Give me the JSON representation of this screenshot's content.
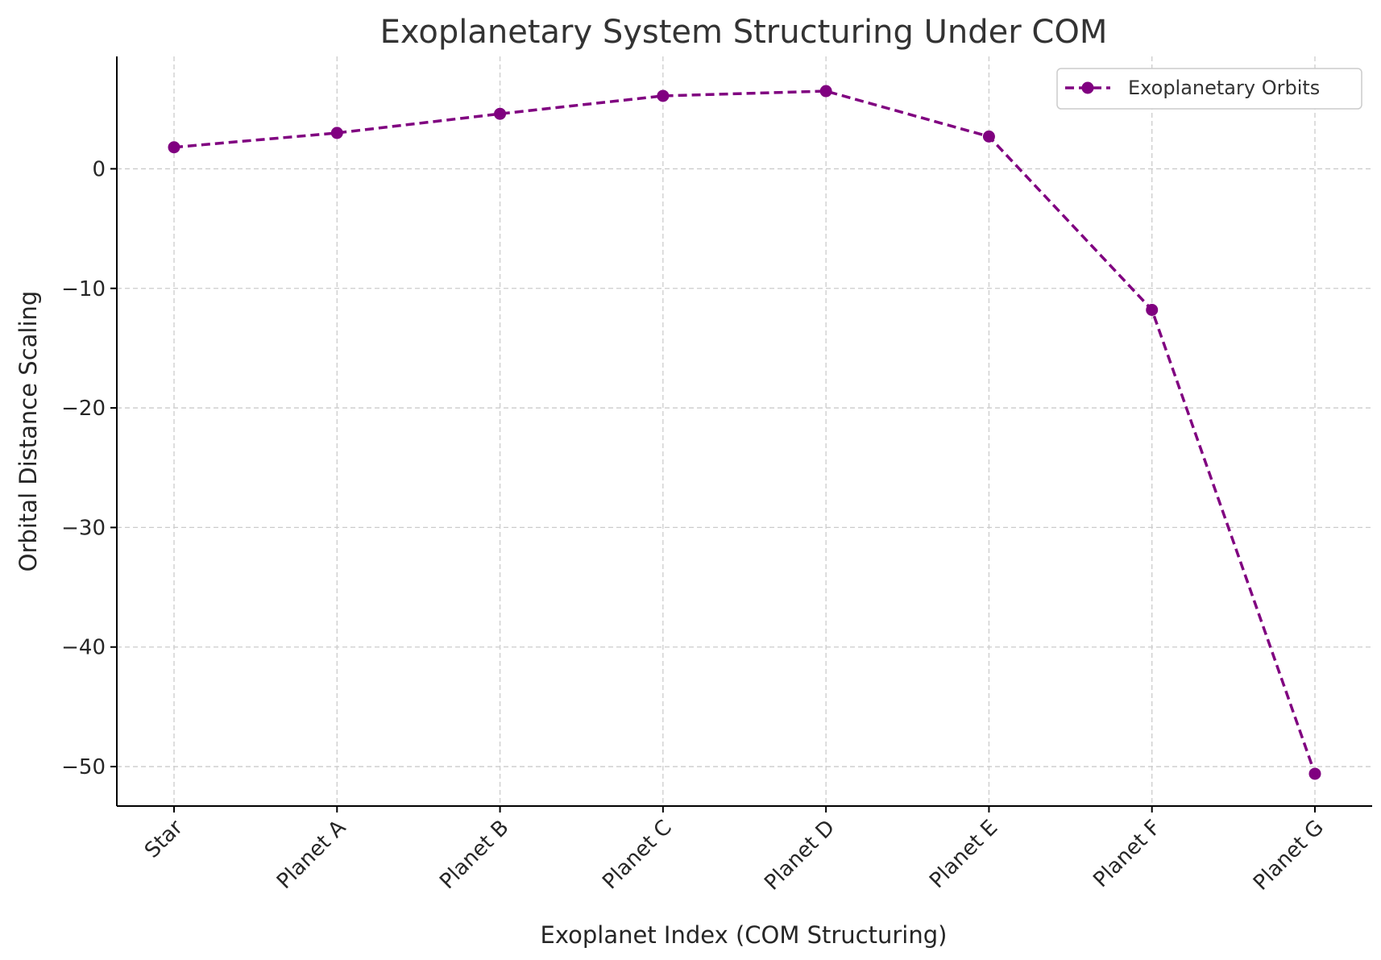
{
  "chart_data": {
    "type": "line",
    "title": "Exoplanetary System Structuring Under COM",
    "xlabel": "Exoplanet Index (COM Structuring)",
    "ylabel": "Orbital Distance Scaling",
    "categories": [
      "Star",
      "Planet A",
      "Planet B",
      "Planet C",
      "Planet D",
      "Planet E",
      "Planet F",
      "Planet G"
    ],
    "series": [
      {
        "name": "Exoplanetary Orbits",
        "values": [
          1.8,
          3.0,
          4.6,
          6.1,
          6.5,
          2.7,
          -11.8,
          -50.6
        ],
        "color": "#800080",
        "line_style": "dashed",
        "marker": "circle"
      }
    ],
    "yticks": [
      0,
      -10,
      -20,
      -30,
      -40,
      -50
    ],
    "ytick_labels": [
      "0",
      "−10",
      "−20",
      "−30",
      "−40",
      "−50"
    ],
    "ylim": [
      -53.3,
      9.4
    ],
    "grid": true,
    "legend_position": "top-right"
  }
}
